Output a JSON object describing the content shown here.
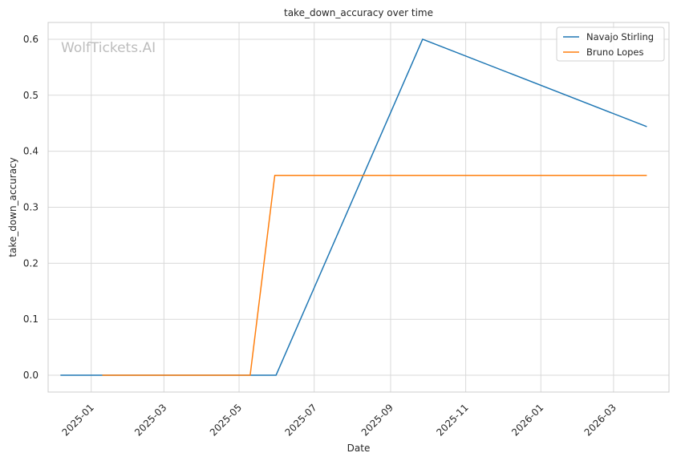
{
  "chart_data": {
    "type": "line",
    "title": "take_down_accuracy over time",
    "xlabel": "Date",
    "ylabel": "take_down_accuracy",
    "watermark": "WolfTickets.AI",
    "x_ticks": [
      "2025-01",
      "2025-03",
      "2025-05",
      "2025-07",
      "2025-09",
      "2025-11",
      "2026-01",
      "2026-03"
    ],
    "x_tick_dates": [
      "2025-01-01",
      "2025-03-01",
      "2025-05-01",
      "2025-07-01",
      "2025-09-01",
      "2025-11-01",
      "2026-01-01",
      "2026-03-01"
    ],
    "y_ticks": [
      0.0,
      0.1,
      0.2,
      0.3,
      0.4,
      0.5,
      0.6
    ],
    "y_tick_labels": [
      "0.0",
      "0.1",
      "0.2",
      "0.3",
      "0.4",
      "0.5",
      "0.6"
    ],
    "xlim": [
      "2024-11-27",
      "2026-04-15"
    ],
    "ylim": [
      -0.03,
      0.63
    ],
    "grid": true,
    "legend_position": "top-right",
    "series": [
      {
        "name": "Navajo Stirling",
        "color": "#1f77b4",
        "points": [
          {
            "x": "2024-12-07",
            "y": 0.0
          },
          {
            "x": "2025-05-31",
            "y": 0.0
          },
          {
            "x": "2025-09-27",
            "y": 0.6
          },
          {
            "x": "2026-03-28",
            "y": 0.444
          }
        ]
      },
      {
        "name": "Bruno Lopes",
        "color": "#ff7f0e",
        "points": [
          {
            "x": "2025-01-10",
            "y": 0.0
          },
          {
            "x": "2025-05-10",
            "y": 0.0
          },
          {
            "x": "2025-05-30",
            "y": 0.357
          },
          {
            "x": "2026-03-28",
            "y": 0.357
          }
        ]
      }
    ]
  }
}
